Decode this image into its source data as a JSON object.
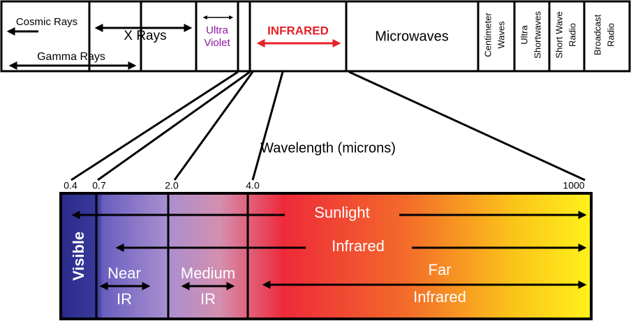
{
  "header": {
    "bands": [
      {
        "lines": [
          "Cosmic Rays"
        ]
      },
      {
        "lines": [
          "Gamma Rays"
        ]
      },
      {
        "lines": [
          "X Rays"
        ]
      },
      {
        "lines": [
          "Ultra",
          "Violet"
        ]
      },
      {
        "lines": [
          "INFRARED"
        ]
      },
      {
        "lines": [
          "Microwaves"
        ]
      },
      {
        "lines": [
          "Centimeter",
          "Waves"
        ]
      },
      {
        "lines": [
          "Ultra",
          "Shortwaves"
        ]
      },
      {
        "lines": [
          "Short Wave",
          "Radio"
        ]
      },
      {
        "lines": [
          "Broadcast",
          "Radio"
        ]
      }
    ]
  },
  "axis": {
    "title": "Wavelength (microns)",
    "ticks": [
      "0.4",
      "0.7",
      "2.0",
      "4.0",
      "1000"
    ]
  },
  "regions": {
    "sunlight": "Sunlight",
    "infrared": "Infrared",
    "visible": "Visible",
    "near": [
      "Near",
      "IR"
    ],
    "medium": [
      "Medium",
      "IR"
    ],
    "far": [
      "Far",
      "Infrared"
    ]
  }
}
